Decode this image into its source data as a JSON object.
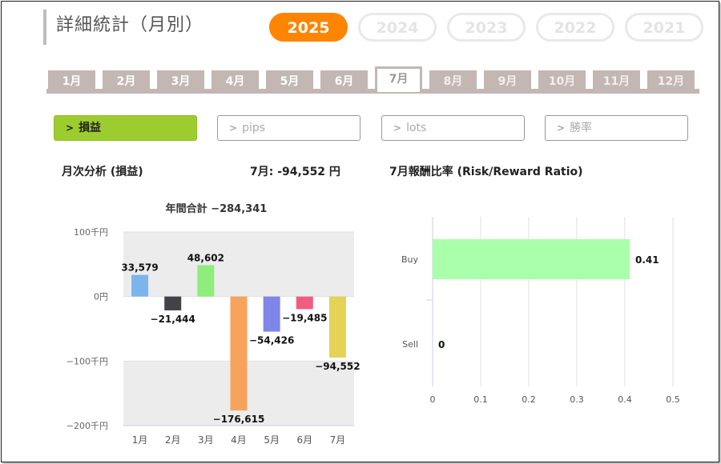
{
  "header": {
    "title": "詳細統計（月別）"
  },
  "years": [
    {
      "label": "2025",
      "active": true
    },
    {
      "label": "2024",
      "active": false
    },
    {
      "label": "2023",
      "active": false
    },
    {
      "label": "2022",
      "active": false
    },
    {
      "label": "2021",
      "active": false
    }
  ],
  "months": [
    {
      "label": "1月",
      "state": "done"
    },
    {
      "label": "2月",
      "state": "done"
    },
    {
      "label": "3月",
      "state": "done"
    },
    {
      "label": "4月",
      "state": "done"
    },
    {
      "label": "5月",
      "state": "done"
    },
    {
      "label": "6月",
      "state": "done"
    },
    {
      "label": "7月",
      "state": "active"
    },
    {
      "label": "8月",
      "state": "future"
    },
    {
      "label": "9月",
      "state": "future"
    },
    {
      "label": "10月",
      "state": "future"
    },
    {
      "label": "11月",
      "state": "future"
    },
    {
      "label": "12月",
      "state": "future"
    }
  ],
  "metrics": [
    {
      "label": "損益",
      "active": true
    },
    {
      "label": "pips",
      "active": false
    },
    {
      "label": "lots",
      "active": false
    },
    {
      "label": "勝率",
      "active": false
    }
  ],
  "left_heading": "月次分析 (損益)",
  "month_summary": "7月:  -94,552 円",
  "right_heading": "7月報酬比率 (Risk/Reward Ratio)",
  "colors": {
    "accent": "#ff8400",
    "active_metric": "#9ccc2e",
    "tab": "#c3b7b3"
  },
  "chart_data": [
    {
      "type": "bar",
      "title": "年間合計 −284,341",
      "categories": [
        "1月",
        "2月",
        "3月",
        "4月",
        "5月",
        "6月",
        "7月"
      ],
      "values": [
        33579,
        -21444,
        48602,
        -176615,
        -54426,
        -19485,
        -94552
      ],
      "value_labels": [
        "33,579",
        "−21,444",
        "48,602",
        "−176,615",
        "−54,426",
        "−19,485",
        "−94,552"
      ],
      "colors": [
        "#7cb5ec",
        "#434348",
        "#90ed7d",
        "#f7a35c",
        "#8085e9",
        "#f15c80",
        "#e4d354"
      ],
      "y_ticks": [
        100000,
        0,
        -100000,
        -200000
      ],
      "y_tick_labels": [
        "100千円",
        "0円",
        "−100千円",
        "−200千円"
      ],
      "ylim": [
        -200000,
        100000
      ]
    },
    {
      "type": "bar",
      "orientation": "horizontal",
      "categories": [
        "Buy",
        "Sell"
      ],
      "values": [
        0.41,
        0
      ],
      "value_labels": [
        "0.41",
        "0"
      ],
      "color": "#aaffaa",
      "x_ticks": [
        0,
        0.1,
        0.2,
        0.3,
        0.4,
        0.5
      ],
      "x_tick_labels": [
        "0",
        "0.1",
        "0.2",
        "0.3",
        "0.4",
        "0.5"
      ],
      "xlim": [
        0,
        0.5
      ]
    }
  ]
}
